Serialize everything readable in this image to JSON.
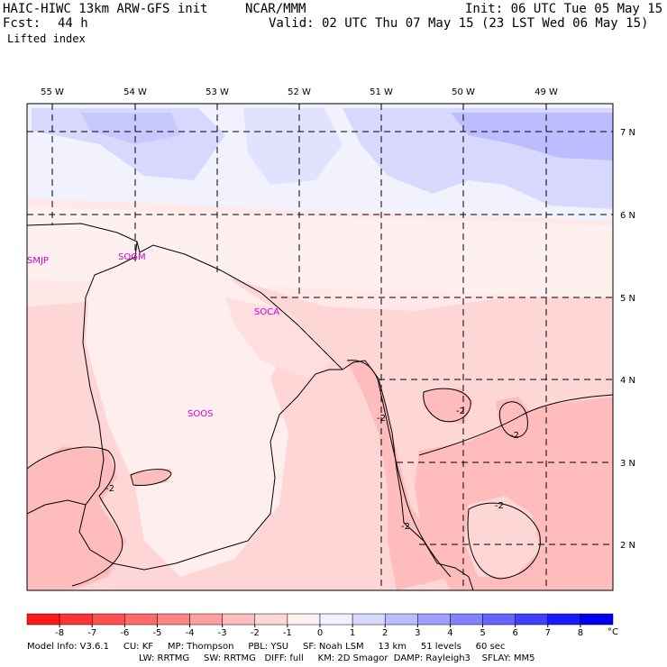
{
  "header": {
    "model": "HAIC-HIWC 13km ARW-GFS init",
    "org": "NCAR/MMM",
    "init": "Init: 06 UTC Tue 05 May 15",
    "fcst_label": "Fcst:",
    "fcst_value": "44 h",
    "valid": "Valid: 02 UTC Thu 07 May 15 (23 LST Wed 06 May 15)",
    "field": "Lifted index"
  },
  "map": {
    "lon_labels": [
      "55 W",
      "54 W",
      "53 W",
      "52 W",
      "51 W",
      "50 W",
      "49 W"
    ],
    "lat_labels": [
      "7 N",
      "6 N",
      "5 N",
      "4 N",
      "3 N",
      "2 N"
    ],
    "stations": [
      "SMJP",
      "SOGM",
      "SOCA",
      "SOOS"
    ],
    "contour_labels": [
      "-2",
      "-2",
      "-2",
      "-2",
      "-2",
      "-2"
    ]
  },
  "colorbar": {
    "ticks": [
      "-8",
      "-7",
      "-6",
      "-5",
      "-4",
      "-3",
      "-2",
      "-1",
      "0",
      "1",
      "2",
      "3",
      "4",
      "5",
      "6",
      "7",
      "8"
    ],
    "unit": "°C",
    "colors": [
      "#ff1a1a",
      "#ff3535",
      "#ff5050",
      "#ff6a6a",
      "#ff8585",
      "#ffa0a0",
      "#ffbcbc",
      "#ffd6d6",
      "#fff0f0",
      "#f2f2ff",
      "#d8d8ff",
      "#bcbcff",
      "#9f9fff",
      "#8282ff",
      "#6565ff",
      "#4040ff",
      "#1a1aff",
      "#0000ee"
    ]
  },
  "footer": {
    "line1": "Model Info: V3.6.1     CU: KF     MP: Thompson     PBL: YSU     SF: Noah LSM     13 km     51 levels     60 sec",
    "line2": "LW: RRTMG     SW: RRTMG   DIFF: full     KM: 2D Smagor  DAMP: Rayleigh3    SFLAY: MM5"
  }
}
